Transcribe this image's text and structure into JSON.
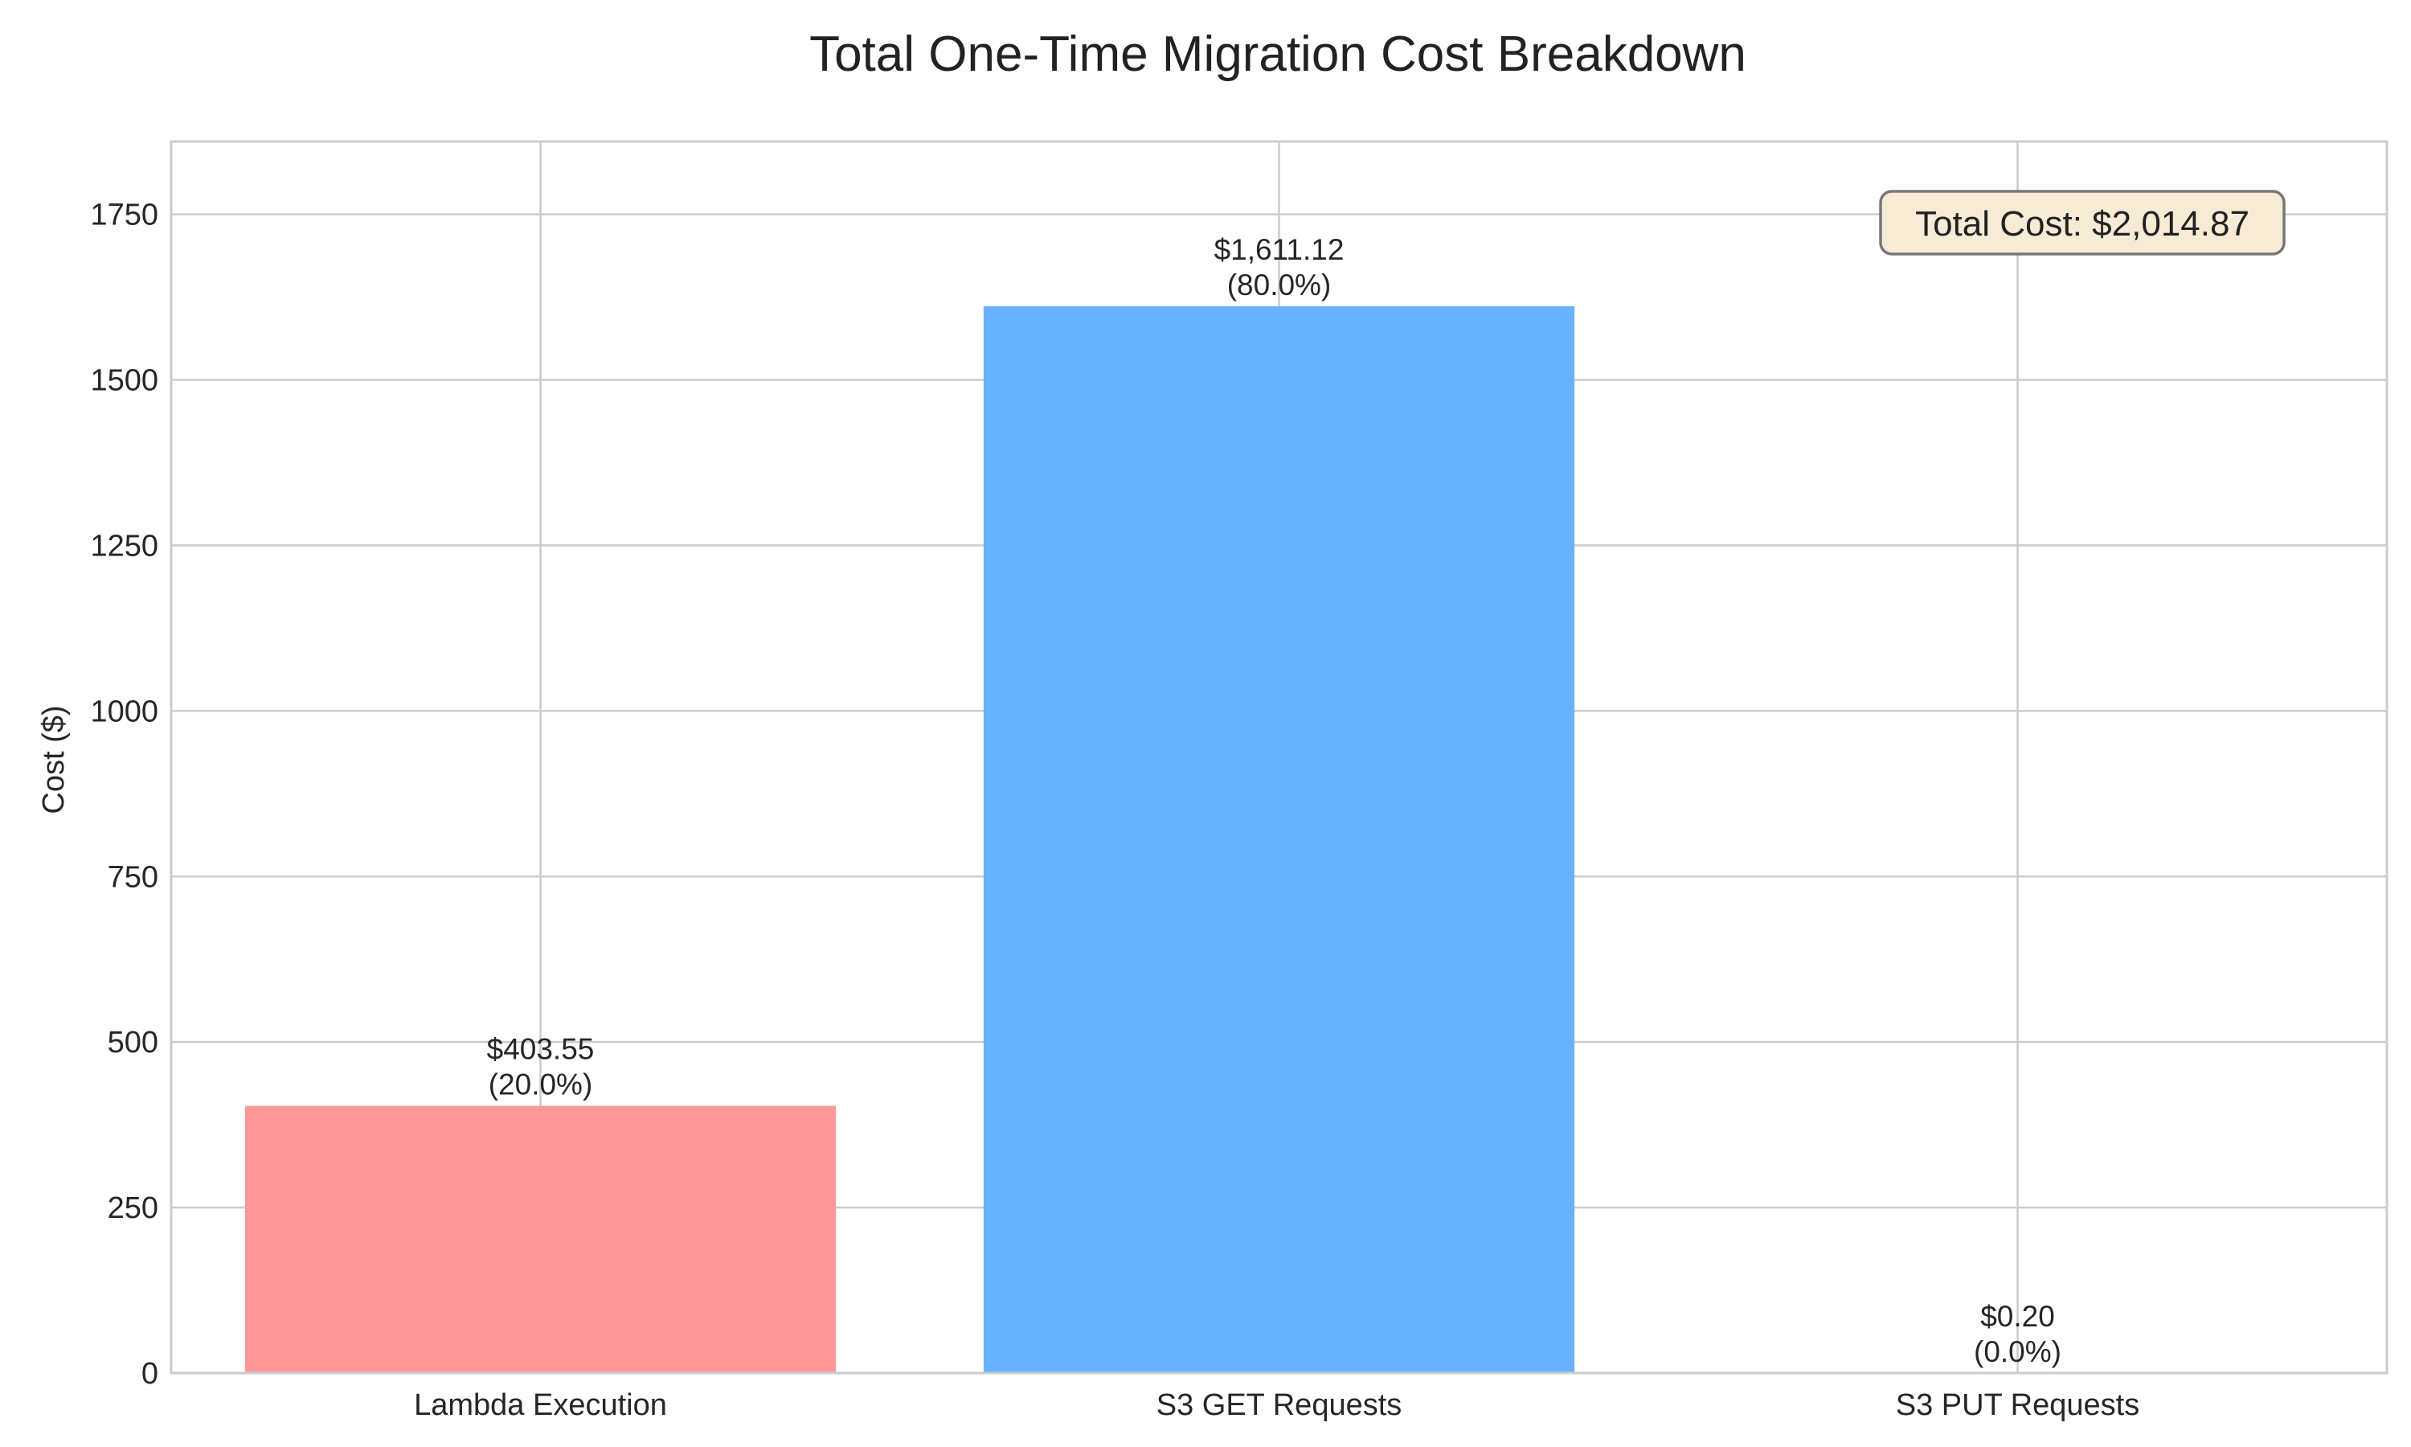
{
  "chart_data": {
    "type": "bar",
    "title": "Total One-Time Migration Cost Breakdown",
    "xlabel": "",
    "ylabel": "Cost ($)",
    "categories": [
      "Lambda Execution",
      "S3 GET Requests",
      "S3 PUT Requests"
    ],
    "values": [
      403.55,
      1611.12,
      0.2
    ],
    "value_labels": [
      "$403.55",
      "$1,611.12",
      "$0.20"
    ],
    "percent_labels": [
      "(20.0%)",
      "(80.0%)",
      "(0.0%)"
    ],
    "colors": [
      "#ff9999",
      "#66b2ff",
      "#99ff99"
    ],
    "ylim": [
      0,
      1860
    ],
    "yticks": [
      0,
      250,
      500,
      750,
      1000,
      1250,
      1500,
      1750
    ],
    "grid": true,
    "annotation": {
      "text": "Total Cost: $2,014.87",
      "placement": "top-right",
      "background": "#f7ebd5"
    }
  }
}
